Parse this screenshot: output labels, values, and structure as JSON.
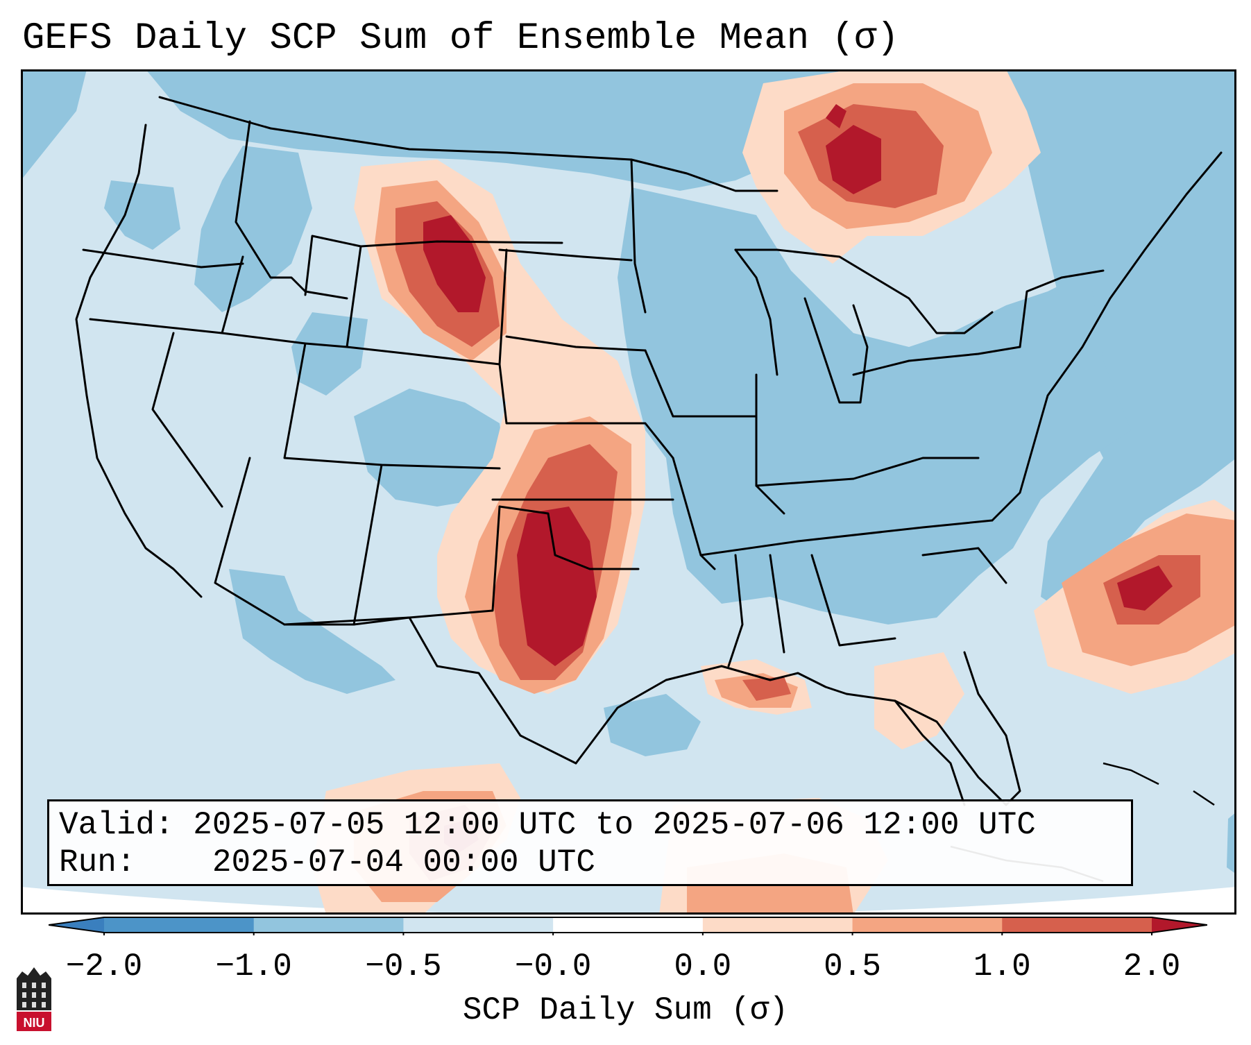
{
  "title": "GEFS Daily SCP Sum of Ensemble Mean (σ)",
  "info": {
    "valid_label": "Valid:",
    "valid_value": "2025-07-05 12:00 UTC to 2025-07-06 12:00 UTC",
    "run_label": "Run:",
    "run_value": "2025-07-04 00:00 UTC"
  },
  "colorbar": {
    "label": "SCP Daily Sum (σ)",
    "ticks": [
      "−2.0",
      "−1.0",
      "−0.5",
      "−0.0",
      "0.0",
      "0.5",
      "1.0",
      "2.0"
    ],
    "colors": [
      "#3a7fbe",
      "#4c94c8",
      "#92c5de",
      "#d1e5f0",
      "#fddbc7",
      "#f4a582",
      "#d6604d",
      "#b2182b"
    ]
  },
  "legend_colors": {
    "land_neutral": "#d1e5f0",
    "below_normal": "#92c5de",
    "above_normal_light": "#fddbc7",
    "above_normal_mid": "#f4a582",
    "above_normal_high": "#d6604d",
    "above_normal_max": "#b2182b"
  },
  "logo": {
    "text": "NIU",
    "color": "#c8102e"
  }
}
